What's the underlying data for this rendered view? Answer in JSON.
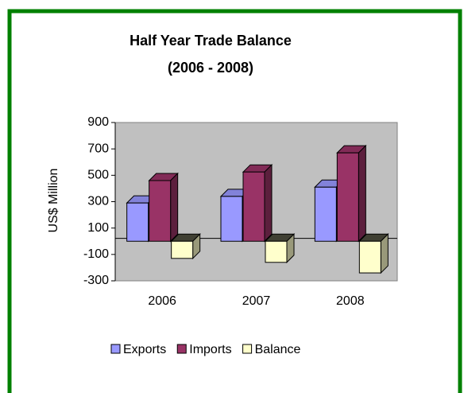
{
  "chart_data": {
    "type": "bar3d",
    "title": "Half Year Trade Balance",
    "subtitle": "(2006 - 2008)",
    "y_label": "US$ Million",
    "categories": [
      "2006",
      "2007",
      "2008"
    ],
    "series": [
      {
        "name": "Exports",
        "color": "#9999ff",
        "values": [
          290,
          340,
          410
        ]
      },
      {
        "name": "Imports",
        "color": "#993366",
        "values": [
          460,
          525,
          670
        ]
      },
      {
        "name": "Balance",
        "color": "#ffffcc",
        "values": [
          -130,
          -160,
          -240
        ]
      }
    ],
    "ylim": [
      -300,
      900
    ],
    "yticks": [
      -300,
      -100,
      100,
      300,
      500,
      700,
      900
    ],
    "plot_background": "#c0c0c0",
    "frame_color": "#008000"
  }
}
